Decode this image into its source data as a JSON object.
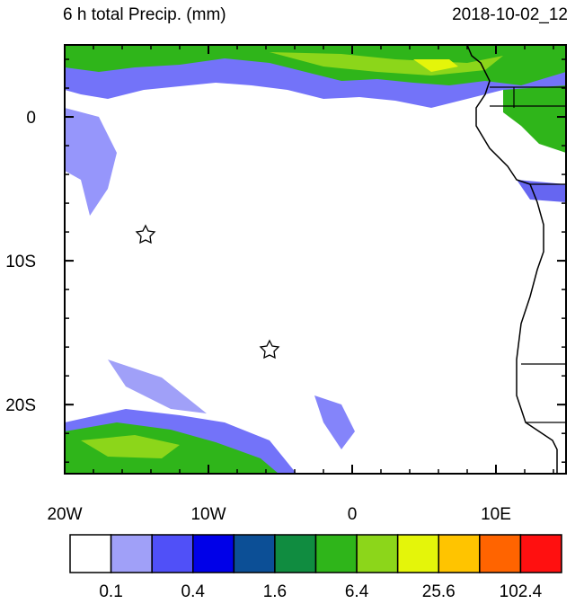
{
  "map": {
    "title": "6 h total Precip. (mm)",
    "valid_time": "2018-10-02_12",
    "xlim": [
      -20,
      14.875
    ],
    "ylim": [
      -24.8,
      5
    ],
    "xticks": [
      {
        "value": -20,
        "label": "20W"
      },
      {
        "value": -10,
        "label": "10W"
      },
      0,
      {
        "value": 10,
        "label": "10E"
      }
    ],
    "yticks": [
      0,
      {
        "value": -10,
        "label": "10S"
      },
      {
        "value": -20,
        "label": "20S"
      }
    ],
    "colorbar": {
      "colors": [
        "#ffffff",
        "#a0a0f8",
        "#5050f8",
        "#0000e8",
        "#0c4f96",
        "#108c40",
        "#2fb51a",
        "#8cd61a",
        "#e4f50a",
        "#ffc400",
        "#ff6400",
        "#ff1010"
      ],
      "levels": [
        0.1,
        0.4,
        1.6,
        6.4,
        25.6,
        102.4
      ]
    }
  }
}
